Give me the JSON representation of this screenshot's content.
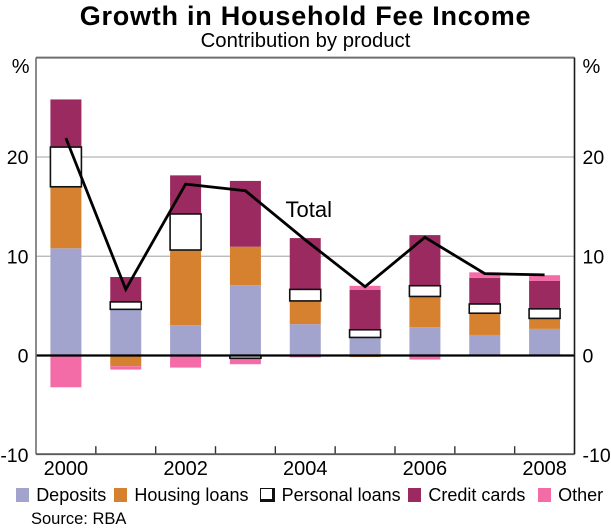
{
  "title": "Growth in Household Fee Income",
  "subtitle": "Contribution by product",
  "source_note": "Source: RBA",
  "annotation_total": "Total",
  "y_axis_unit_left": "%",
  "y_axis_unit_right": "%",
  "colors": {
    "deposits": "#a2a4ce",
    "housing_loans": "#d6812f",
    "personal_loans": "#ffffff",
    "personal_loans_border": "#111111",
    "credit_cards": "#9a2a60",
    "other": "#f36ca8",
    "total_line": "#000000",
    "zero_line": "#000000",
    "gridline": "#b3b3b3",
    "frame": "#6f6f6f",
    "frame_right": "#1a1a1a",
    "text": "#000000"
  },
  "chart_data": {
    "type": "bar",
    "stacked": true,
    "title": "Growth in Household Fee Income",
    "subtitle": "Contribution by product",
    "xlabel": "",
    "ylabel": "%",
    "ylim": [
      -10,
      30
    ],
    "yticks": [
      -10,
      0,
      10,
      20
    ],
    "grid": "horizontal",
    "legend_position": "bottom",
    "categories": [
      2000,
      2001,
      2002,
      2003,
      2004,
      2005,
      2006,
      2007,
      2008
    ],
    "xtick_labels": [
      "2000",
      "2002",
      "2004",
      "2006",
      "2008"
    ],
    "series": [
      {
        "name": "Deposits",
        "color": "#a2a4ce",
        "outlined": false,
        "values": [
          10.8,
          4.65,
          3.05,
          7.08,
          3.16,
          1.82,
          2.85,
          2.07,
          2.68
        ]
      },
      {
        "name": "Housing loans",
        "color": "#d6812f",
        "outlined": false,
        "values": [
          6.2,
          -1.08,
          7.58,
          3.88,
          2.34,
          -0.16,
          3.1,
          2.19,
          1.06
        ]
      },
      {
        "name": "Personal loans",
        "color": "#ffffff",
        "outlined": true,
        "values": [
          4.0,
          0.75,
          3.63,
          -0.28,
          1.16,
          0.77,
          1.08,
          0.93,
          0.96
        ]
      },
      {
        "name": "Credit cards",
        "color": "#9a2a60",
        "outlined": false,
        "values": [
          4.8,
          2.51,
          3.89,
          6.63,
          5.17,
          4.01,
          5.1,
          2.63,
          2.81
        ]
      },
      {
        "name": "Other",
        "color": "#f36ca8",
        "outlined": false,
        "values": [
          -3.2,
          -0.34,
          -1.22,
          -0.6,
          -0.19,
          0.42,
          -0.41,
          0.56,
          0.58
        ]
      }
    ],
    "overlay_line": {
      "name": "Total",
      "color": "#000000",
      "values": [
        21.9,
        6.66,
        17.27,
        16.6,
        11.65,
        6.93,
        11.91,
        8.25,
        8.12
      ]
    }
  },
  "legend": {
    "items": [
      {
        "label": "Deposits",
        "color": "#a2a4ce",
        "outlined": false
      },
      {
        "label": "Housing loans",
        "color": "#d6812f",
        "outlined": false
      },
      {
        "label": "Personal loans",
        "color": "#ffffff",
        "outlined": true
      },
      {
        "label": "Credit cards",
        "color": "#9a2a60",
        "outlined": false
      },
      {
        "label": "Other",
        "color": "#f36ca8",
        "outlined": false
      }
    ]
  }
}
